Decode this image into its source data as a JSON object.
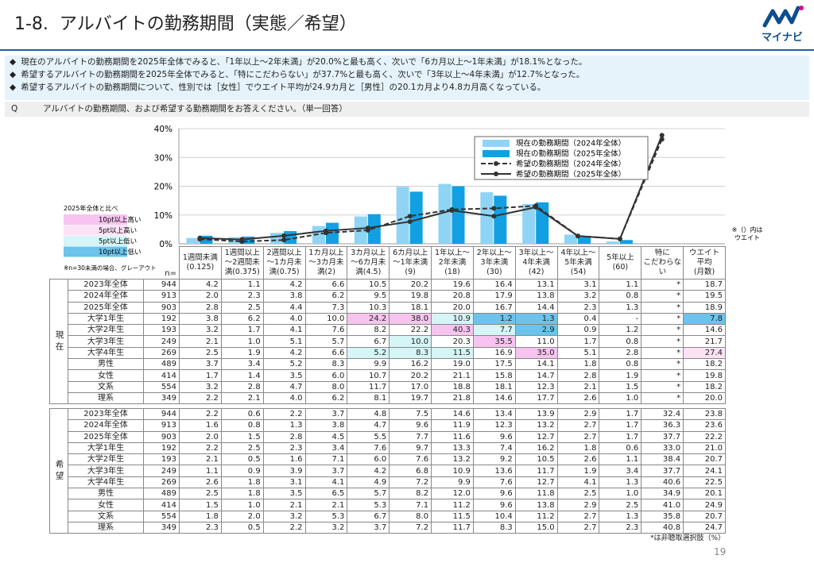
{
  "header": {
    "title": "1-8.  アルバイトの勤務期間（実態／希望）",
    "logo": "マイナビ"
  },
  "bullets": [
    "現在のアルバイトの勤務期間を2025年全体でみると、「1年以上～2年未満」が20.0%と最も高く、次いで「6カ月以上～1年未満」が18.1%となった。",
    "希望するアルバイトの勤務期間を2025年全体でみると、「特にこだわらない」が37.7%と最も高く、次いで「3年以上～4年未満」が12.7%となった。",
    "希望するアルバイトの勤務期間について、性別では［女性］でウエイト平均が24.9カ月と［男性］の20.1カ月より4.8カ月高くなっている。"
  ],
  "question": {
    "label": "Q",
    "text": "アルバイトの勤務期間、および希望する勤務期間をお答えください。（単一回答）"
  },
  "chart_data": {
    "type": "bar",
    "categories": [
      "1週間未満\n(0.125)",
      "1週間以上\n～2週間未\n満(0.375)",
      "2週間以上\n～1カ月未\n満(0.75)",
      "1カ月以上\n～3カ月未\n満(2)",
      "3カ月以上\n～6カ月未\n満(4.5)",
      "6カ月以上\n～1年未満\n(9)",
      "1年以上～\n2年未満\n(18)",
      "2年以上～\n3年未満\n(30)",
      "3年以上～\n4年未満\n(42)",
      "4年以上～\n5年未満\n(54)",
      "5年以上\n(60)",
      "特に\nこだわらない",
      "ウエイト\n平均\n(月数)"
    ],
    "ylim": [
      0,
      40
    ],
    "yticks": [
      {
        "value": 0,
        "label": "0%"
      },
      {
        "value": 10,
        "label": "10%"
      },
      {
        "value": 20,
        "label": "20%"
      },
      {
        "value": 30,
        "label": "30%"
      },
      {
        "value": 40,
        "label": "40%"
      }
    ],
    "grid": true,
    "legend": "upper right",
    "series": [
      {
        "name": "現在の勤務期間（2024年全体）",
        "type": "bar",
        "color": "#8fd4f4",
        "values": [
          2.0,
          2.3,
          3.8,
          6.2,
          9.5,
          19.8,
          20.8,
          17.9,
          13.8,
          3.2,
          0.8,
          null,
          null
        ]
      },
      {
        "name": "現在の勤務期間（2025年全体）",
        "type": "bar",
        "color": "#12a0e2",
        "values": [
          2.8,
          2.5,
          4.4,
          7.3,
          10.3,
          18.1,
          20.0,
          16.7,
          14.4,
          2.3,
          1.3,
          null,
          null
        ]
      },
      {
        "name": "希望の勤務期間（2024年全体）",
        "type": "line",
        "dashed": true,
        "color": "#333333",
        "values": [
          1.6,
          0.8,
          1.3,
          3.8,
          4.7,
          9.6,
          11.9,
          12.3,
          13.2,
          2.7,
          1.7,
          36.3,
          null
        ]
      },
      {
        "name": "希望の勤務期間（2025年全体）",
        "type": "line",
        "dashed": false,
        "color": "#333333",
        "values": [
          2.0,
          1.5,
          2.8,
          4.5,
          5.5,
          7.7,
          11.6,
          9.6,
          12.7,
          2.7,
          1.7,
          37.7,
          null
        ]
      }
    ]
  },
  "chart_note": "※（）内は\nウエイト",
  "color_key": {
    "title": "2025年全体と比べ",
    "items": [
      {
        "label": "10pt以上高い",
        "color": "#f6c4ef"
      },
      {
        "label": "5pt以上高い",
        "color": "#fde2f6"
      },
      {
        "label": "5pt以上低い",
        "color": "#d5f5f6"
      },
      {
        "label": "10pt以上低い",
        "color": "#6cc3ec"
      }
    ],
    "note": "※n=30未満の場合、グレーアウト"
  },
  "table": {
    "n_label": "n=",
    "sections": [
      {
        "label": "現在",
        "rows": [
          {
            "label": "2023年全体",
            "n": 944,
            "values": [
              "4.2",
              "1.1",
              "4.2",
              "6.6",
              "10.5",
              "20.2",
              "19.6",
              "16.4",
              "13.1",
              "3.1",
              "1.1",
              "*",
              "18.7"
            ]
          },
          {
            "label": "2024年全体",
            "n": 913,
            "values": [
              "2.0",
              "2.3",
              "3.8",
              "6.2",
              "9.5",
              "19.8",
              "20.8",
              "17.9",
              "13.8",
              "3.2",
              "0.8",
              "*",
              "19.5"
            ]
          },
          {
            "label": "2025年全体",
            "n": 903,
            "values": [
              "2.8",
              "2.5",
              "4.4",
              "7.3",
              "10.3",
              "18.1",
              "20.0",
              "16.7",
              "14.4",
              "2.3",
              "1.3",
              "*",
              "18.9"
            ]
          },
          {
            "label": "大学1年生",
            "n": 192,
            "values": [
              "3.8",
              "6.2",
              "4.0",
              "10.0",
              "24.2",
              "38.0",
              "10.9",
              "1.2",
              "1.3",
              "0.4",
              "-",
              "*",
              "7.8"
            ],
            "highlight": {
              "4": 0,
              "5": 0,
              "6": 2,
              "7": 3,
              "8": 3,
              "12": 3
            }
          },
          {
            "label": "大学2年生",
            "n": 193,
            "values": [
              "3.2",
              "1.7",
              "4.1",
              "7.6",
              "8.2",
              "22.2",
              "40.3",
              "7.7",
              "2.9",
              "0.9",
              "1.2",
              "*",
              "14.6"
            ],
            "highlight": {
              "6": 0,
              "7": 2,
              "8": 3
            }
          },
          {
            "label": "大学3年生",
            "n": 249,
            "values": [
              "2.1",
              "1.0",
              "5.1",
              "5.7",
              "6.7",
              "10.0",
              "20.3",
              "35.5",
              "11.0",
              "1.7",
              "0.8",
              "*",
              "21.7"
            ],
            "highlight": {
              "5": 2,
              "7": 0
            }
          },
          {
            "label": "大学4年生",
            "n": 269,
            "values": [
              "2.5",
              "1.9",
              "4.2",
              "6.6",
              "5.2",
              "8.3",
              "11.5",
              "16.9",
              "35.0",
              "5.1",
              "2.8",
              "*",
              "27.4"
            ],
            "highlight": {
              "4": 2,
              "5": 2,
              "6": 2,
              "8": 0,
              "12": 1
            }
          },
          {
            "label": "男性",
            "n": 489,
            "values": [
              "3.7",
              "3.4",
              "5.2",
              "8.3",
              "9.9",
              "16.2",
              "19.0",
              "17.5",
              "14.1",
              "1.8",
              "0.8",
              "*",
              "18.2"
            ]
          },
          {
            "label": "女性",
            "n": 414,
            "values": [
              "1.7",
              "1.4",
              "3.5",
              "6.0",
              "10.7",
              "20.2",
              "21.1",
              "15.8",
              "14.7",
              "2.8",
              "1.9",
              "*",
              "19.8"
            ]
          },
          {
            "label": "文系",
            "n": 554,
            "values": [
              "3.2",
              "2.8",
              "4.7",
              "8.0",
              "11.7",
              "17.0",
              "18.8",
              "18.1",
              "12.3",
              "2.1",
              "1.5",
              "*",
              "18.2"
            ]
          },
          {
            "label": "理系",
            "n": 349,
            "values": [
              "2.2",
              "2.1",
              "4.0",
              "6.2",
              "8.1",
              "19.7",
              "21.8",
              "14.6",
              "17.7",
              "2.6",
              "1.0",
              "*",
              "20.0"
            ]
          }
        ]
      },
      {
        "label": "希望",
        "rows": [
          {
            "label": "2023年全体",
            "n": 944,
            "values": [
              "2.2",
              "0.6",
              "2.2",
              "3.7",
              "4.8",
              "7.5",
              "14.6",
              "13.4",
              "13.9",
              "2.9",
              "1.7",
              "32.4",
              "23.8"
            ]
          },
          {
            "label": "2024年全体",
            "n": 913,
            "values": [
              "1.6",
              "0.8",
              "1.3",
              "3.8",
              "4.7",
              "9.6",
              "11.9",
              "12.3",
              "13.2",
              "2.7",
              "1.7",
              "36.3",
              "23.6"
            ]
          },
          {
            "label": "2025年全体",
            "n": 903,
            "values": [
              "2.0",
              "1.5",
              "2.8",
              "4.5",
              "5.5",
              "7.7",
              "11.6",
              "9.6",
              "12.7",
              "2.7",
              "1.7",
              "37.7",
              "22.2"
            ]
          },
          {
            "label": "大学1年生",
            "n": 192,
            "values": [
              "2.2",
              "2.5",
              "2.3",
              "3.4",
              "7.6",
              "9.7",
              "13.3",
              "7.4",
              "16.2",
              "1.8",
              "0.6",
              "33.0",
              "21.0"
            ]
          },
          {
            "label": "大学2年生",
            "n": 193,
            "values": [
              "2.1",
              "0.5",
              "1.6",
              "7.1",
              "6.0",
              "7.6",
              "13.2",
              "9.2",
              "10.5",
              "2.6",
              "1.1",
              "38.4",
              "20.7"
            ]
          },
          {
            "label": "大学3年生",
            "n": 249,
            "values": [
              "1.1",
              "0.9",
              "3.9",
              "3.7",
              "4.2",
              "6.8",
              "10.9",
              "13.6",
              "11.7",
              "1.9",
              "3.4",
              "37.7",
              "24.1"
            ]
          },
          {
            "label": "大学4年生",
            "n": 269,
            "values": [
              "2.6",
              "1.8",
              "3.1",
              "4.1",
              "4.9",
              "7.2",
              "9.9",
              "7.6",
              "12.7",
              "4.1",
              "1.3",
              "40.6",
              "22.5"
            ]
          },
          {
            "label": "男性",
            "n": 489,
            "values": [
              "2.5",
              "1.8",
              "3.5",
              "6.5",
              "5.7",
              "8.2",
              "12.0",
              "9.6",
              "11.8",
              "2.5",
              "1.0",
              "34.9",
              "20.1"
            ]
          },
          {
            "label": "女性",
            "n": 414,
            "values": [
              "1.5",
              "1.0",
              "2.1",
              "2.1",
              "5.3",
              "7.1",
              "11.2",
              "9.6",
              "13.8",
              "2.9",
              "2.5",
              "41.0",
              "24.9"
            ]
          },
          {
            "label": "文系",
            "n": 554,
            "values": [
              "1.8",
              "2.0",
              "3.2",
              "5.3",
              "6.7",
              "8.0",
              "11.5",
              "10.4",
              "11.2",
              "2.7",
              "1.3",
              "35.8",
              "20.7"
            ]
          },
          {
            "label": "理系",
            "n": 349,
            "values": [
              "2.3",
              "0.5",
              "2.2",
              "3.2",
              "3.7",
              "7.2",
              "11.7",
              "8.3",
              "15.0",
              "2.7",
              "2.3",
              "40.8",
              "24.7"
            ]
          }
        ]
      }
    ]
  },
  "footnote": "*は非聴取選択肢（%）",
  "page": 19
}
